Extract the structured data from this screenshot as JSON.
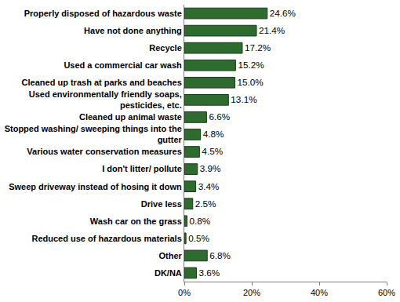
{
  "chart_data": {
    "type": "bar",
    "orientation": "horizontal",
    "categories": [
      "Properly disposed of hazardous waste",
      "Have not done anything",
      "Recycle",
      "Used a commercial car wash",
      "Cleaned up trash at parks and beaches",
      "Used environmentally friendly soaps, pesticides, etc.",
      "Cleaned up animal waste",
      "Stopped washing/ sweeping things into the gutter",
      "Various water conservation measures",
      "I don't litter/ pollute",
      "Sweep driveway instead of hosing it down",
      "Drive less",
      "Wash car on the grass",
      "Reduced use of hazardous materials",
      "Other",
      "DK/NA"
    ],
    "values": [
      24.6,
      21.4,
      17.2,
      15.2,
      15.0,
      13.1,
      6.6,
      4.8,
      4.5,
      3.9,
      3.4,
      2.5,
      0.8,
      0.5,
      6.8,
      3.6
    ],
    "value_labels": [
      "24.6%",
      "21.4%",
      "17.2%",
      "15.2%",
      "15.0%",
      "13.1%",
      "6.6%",
      "4.8%",
      "4.5%",
      "3.9%",
      "3.4%",
      "2.5%",
      "0.8%",
      "0.5%",
      "6.8%",
      "3.6%"
    ],
    "data_labels": true,
    "color": "#2f6b2f",
    "xlim": [
      0,
      60
    ],
    "xticks": [
      {
        "value": 0,
        "label": "0%"
      },
      {
        "value": 20,
        "label": "20%"
      },
      {
        "value": 40,
        "label": "40%"
      },
      {
        "value": 60,
        "label": "60%"
      }
    ],
    "grid": false
  }
}
